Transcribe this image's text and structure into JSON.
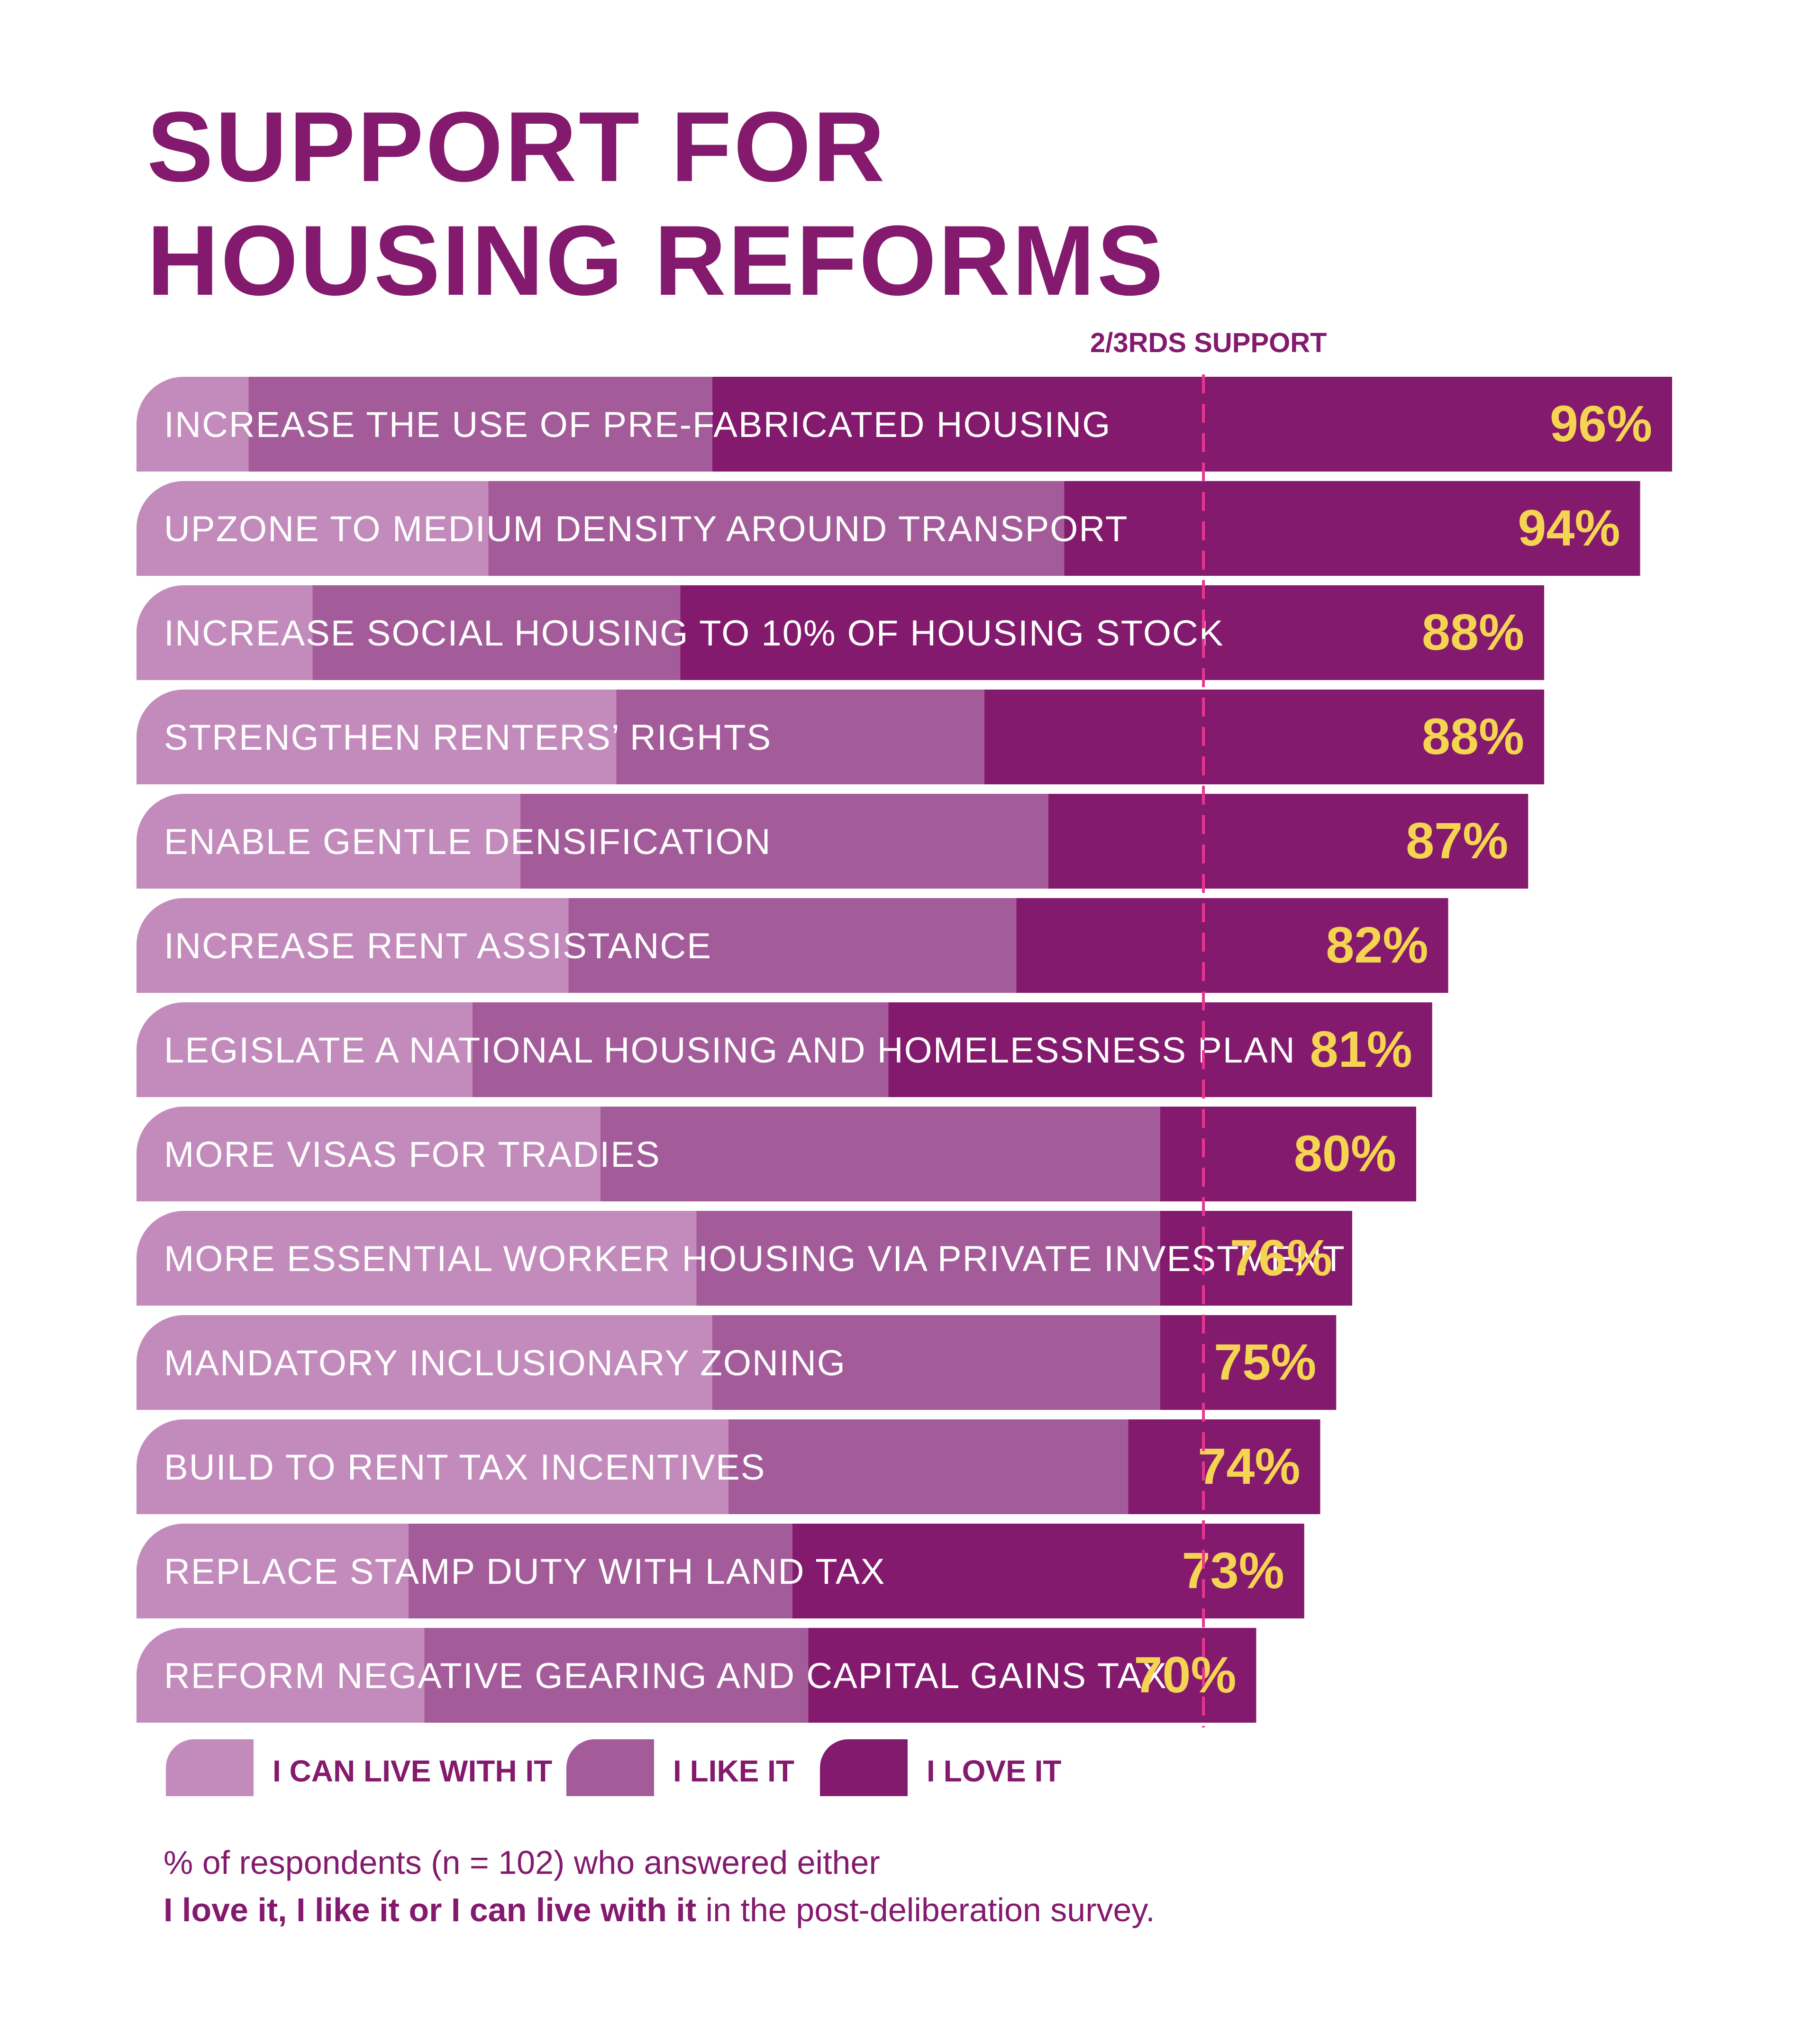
{
  "title": {
    "line1": "SUPPORT FOR",
    "line2": "HOUSING REFORMS"
  },
  "colors": {
    "can_live_with_it": "#c28bbc",
    "like_it": "#a45b9a",
    "love_it": "#841a6e",
    "value_text": "#f5d451",
    "threshold_line": "#e8368f",
    "bar_label_text": "#ffffff"
  },
  "threshold": {
    "label": "2/3RDS SUPPORT",
    "value": 66.7
  },
  "legend": {
    "placement": "bottom",
    "items": [
      {
        "label": "I CAN LIVE WITH IT",
        "color": "#c28bbc"
      },
      {
        "label": "I LIKE IT",
        "color": "#a45b9a"
      },
      {
        "label": "I LOVE IT",
        "color": "#841a6e"
      }
    ]
  },
  "footnote": {
    "line1": "% of respondents (n = 102) who answered either",
    "line2_bold": "I love it, I like it or I can live with it",
    "line2_rest": " in the post-deliberation survey."
  },
  "chart_data": {
    "type": "bar",
    "orientation": "horizontal",
    "stacked": true,
    "title": "SUPPORT FOR HOUSING REFORMS",
    "xlim": [
      0,
      100
    ],
    "grid": false,
    "categories": [
      "INCREASE THE USE OF PRE-FABRICATED HOUSING",
      "UPZONE TO MEDIUM DENSITY AROUND TRANSPORT",
      "INCREASE SOCIAL HOUSING TO 10% OF HOUSING STOCK",
      "STRENGTHEN RENTERS’ RIGHTS",
      "ENABLE GENTLE DENSIFICATION",
      "INCREASE RENT ASSISTANCE",
      "LEGISLATE A NATIONAL HOUSING AND HOMELESSNESS PLAN",
      "MORE VISAS FOR TRADIES",
      "MORE ESSENTIAL WORKER HOUSING VIA PRIVATE INVESTMENT",
      "MANDATORY INCLUSIONARY ZONING",
      "BUILD TO RENT TAX INCENTIVES",
      "REPLACE STAMP DUTY WITH LAND TAX",
      "REFORM NEGATIVE GEARING AND CAPITAL GAINS TAX"
    ],
    "series": [
      {
        "name": "I CAN LIVE WITH IT",
        "values": [
          7,
          22,
          11,
          30,
          24,
          27,
          21,
          29,
          35,
          36,
          37,
          17,
          18
        ]
      },
      {
        "name": "I LIKE IT",
        "values": [
          29,
          36,
          23,
          23,
          33,
          28,
          26,
          35,
          29,
          28,
          25,
          24,
          24
        ]
      },
      {
        "name": "I LOVE IT",
        "values": [
          60,
          36,
          54,
          35,
          30,
          27,
          34,
          16,
          12,
          11,
          12,
          32,
          28
        ]
      }
    ],
    "totals": [
      96,
      94,
      88,
      88,
      87,
      82,
      81,
      80,
      76,
      75,
      74,
      73,
      70
    ],
    "total_labels": [
      "96%",
      "94%",
      "88%",
      "88%",
      "87%",
      "82%",
      "81%",
      "80%",
      "76%",
      "75%",
      "74%",
      "73%",
      "70%"
    ]
  }
}
